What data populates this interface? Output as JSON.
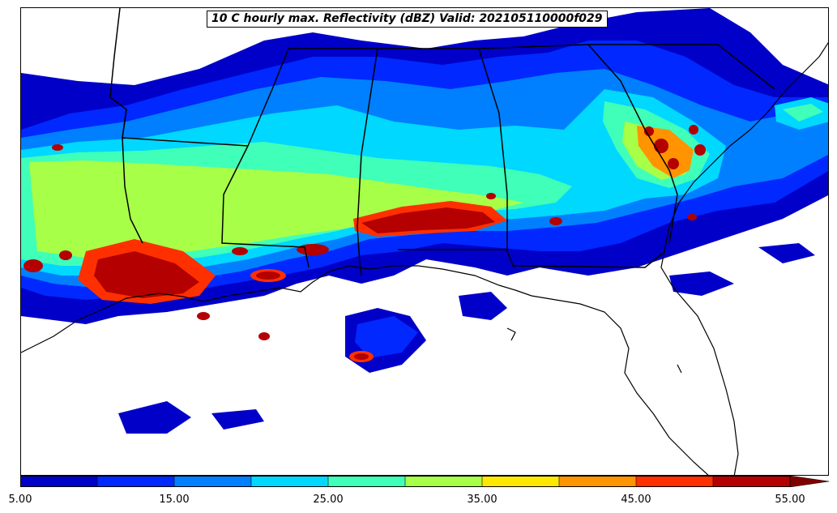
{
  "title": "10 C hourly max. Reflectivity (dBZ) Valid: 202105110000f029",
  "colorbar": {
    "min": 5.0,
    "max": 55.0,
    "extend": "max",
    "bins": [
      {
        "from": 5,
        "to": 10,
        "color": "#0000c8"
      },
      {
        "from": 10,
        "to": 15,
        "color": "#0028ff"
      },
      {
        "from": 15,
        "to": 20,
        "color": "#0080ff"
      },
      {
        "from": 20,
        "to": 25,
        "color": "#00d8ff"
      },
      {
        "from": 25,
        "to": 30,
        "color": "#40ffb8"
      },
      {
        "from": 30,
        "to": 35,
        "color": "#a8ff48"
      },
      {
        "from": 35,
        "to": 40,
        "color": "#ffe800"
      },
      {
        "from": 40,
        "to": 45,
        "color": "#ff9400"
      },
      {
        "from": 45,
        "to": 50,
        "color": "#ff3000"
      },
      {
        "from": 50,
        "to": 55,
        "color": "#b40000"
      }
    ],
    "extend_color": "#800000",
    "tick_labels": [
      "5.00",
      "15.00",
      "25.00",
      "35.00",
      "45.00",
      "55.00"
    ]
  },
  "map": {
    "projection": "regional southeastern United States",
    "features": [
      "state boundaries",
      "coastlines",
      "gridded reflectivity field"
    ],
    "line_color": "#000000"
  }
}
